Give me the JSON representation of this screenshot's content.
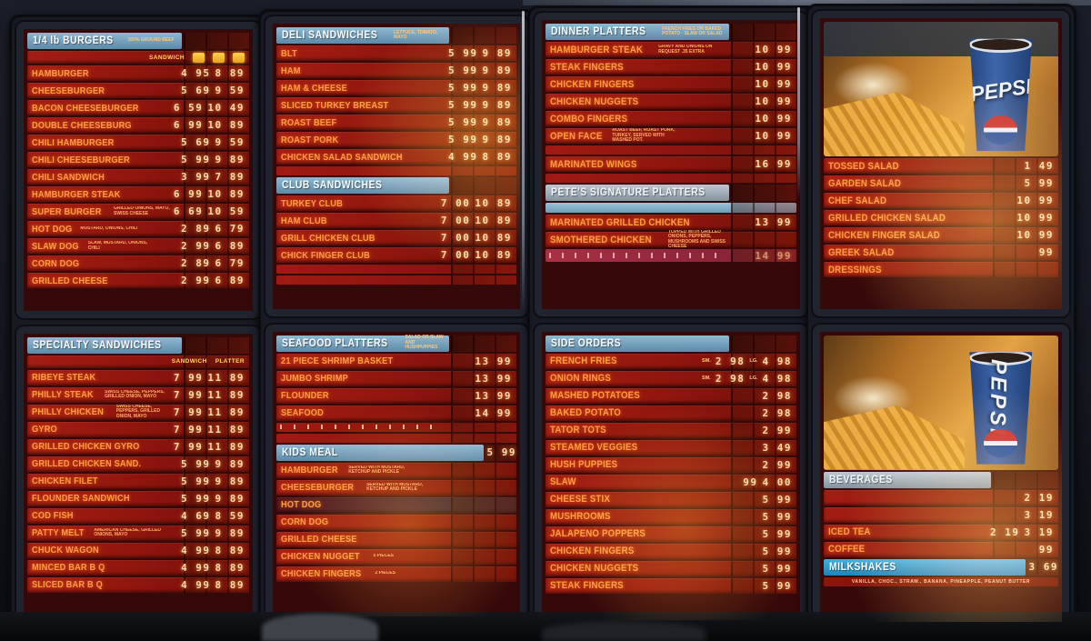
{
  "brand": "PEPSI",
  "colors": {
    "row_red": "#a41d13",
    "letter_orange": "#ff9e45",
    "price_cream": "#ffdcae",
    "header_blue": "#5c8aa8",
    "header_cyan": "#1f84b4",
    "tab_yellow": "#ffd34d",
    "frame_dark": "#171a23"
  },
  "board": {
    "panels": [
      {
        "name": "burgers-and-specialty",
        "windows": [
          [
            {
              "t": "h",
              "v": "blue",
              "title": "1/4 lb BURGERS",
              "sub": "100% GROUND BEEF"
            },
            {
              "t": "c",
              "labels": [
                "SANDWICH"
              ],
              "tabs": 3
            },
            {
              "t": "i",
              "name": "HAMBURGER",
              "p1": "4 95",
              "p2": "8 89"
            },
            {
              "t": "i",
              "name": "CHEESEBURGER",
              "p1": "5 69",
              "p2": "9 59"
            },
            {
              "t": "i",
              "name": "BACON CHEESEBURGER",
              "p1": "6 59",
              "p2": "10 49"
            },
            {
              "t": "i",
              "name": "DOUBLE CHEESEBURG",
              "p1": "6 99",
              "p2": "10 89"
            },
            {
              "t": "i",
              "name": "CHILI HAMBURGER",
              "p1": "5 69",
              "p2": "9 59"
            },
            {
              "t": "i",
              "name": "CHILI CHEESEBURGER",
              "p1": "5 99",
              "p2": "9 89"
            },
            {
              "t": "i",
              "name": "CHILI SANDWICH",
              "p1": "3 99",
              "p2": "7 89"
            },
            {
              "t": "i",
              "name": "HAMBURGER STEAK",
              "p1": "6 99",
              "p2": "10 89"
            },
            {
              "t": "i",
              "name": "SUPER BURGER",
              "note": "GRILLED ONIONS, MAYO, SWISS CHEESE",
              "p1": "6 69",
              "p2": "10 59"
            },
            {
              "t": "i",
              "name": "HOT DOG",
              "note": "MUSTARD, ONIONS, CHILI",
              "p1": "2 89",
              "p2": "6 79"
            },
            {
              "t": "i",
              "name": "SLAW DOG",
              "note": "SLAW, MUSTARD, ONIONS, CHILI",
              "p1": "2 99",
              "p2": "6 89"
            },
            {
              "t": "i",
              "name": "CORN DOG",
              "p1": "2 89",
              "p2": "6 79"
            },
            {
              "t": "i",
              "name": "GRILLED CHEESE",
              "p1": "2 99",
              "p2": "6 89"
            }
          ],
          [
            {
              "t": "h",
              "v": "blue",
              "title": "SPECIALTY SANDWICHES"
            },
            {
              "t": "c",
              "labels": [
                "SANDWICH",
                "PLATTER"
              ]
            },
            {
              "t": "i",
              "name": "RIBEYE STEAK",
              "p1": "7 99",
              "p2": "11 89"
            },
            {
              "t": "i",
              "name": "PHILLY STEAK",
              "note": "SWISS CHEESE, PEPPERS, GRILLED ONION, MAYO",
              "p1": "7 99",
              "p2": "11 89"
            },
            {
              "t": "i",
              "name": "PHILLY CHICKEN",
              "note": "SWISS CHEESE, PEPPERS, GRILLED ONION, MAYO",
              "p1": "7 99",
              "p2": "11 89"
            },
            {
              "t": "i",
              "name": "GYRO",
              "p1": "7 99",
              "p2": "11 89"
            },
            {
              "t": "i",
              "name": "GRILLED CHICKEN GYRO",
              "p1": "7 99",
              "p2": "11 89"
            },
            {
              "t": "i",
              "name": "GRILLED CHICKEN SAND.",
              "p1": "5 99",
              "p2": "9 89"
            },
            {
              "t": "i",
              "name": "CHICKEN FILET",
              "p1": "5 99",
              "p2": "9 89"
            },
            {
              "t": "i",
              "name": "FLOUNDER SANDWICH",
              "p1": "5 99",
              "p2": "9 89"
            },
            {
              "t": "i",
              "name": "COD FISH",
              "p1": "4 69",
              "p2": "8 59"
            },
            {
              "t": "i",
              "name": "PATTY MELT",
              "note": "AMERICAN CHEESE, GRILLED ONIONS, MAYO",
              "p1": "5 99",
              "p2": "9 89"
            },
            {
              "t": "i",
              "name": "CHUCK WAGON",
              "p1": "4 99",
              "p2": "8 89"
            },
            {
              "t": "i",
              "name": "MINCED BAR B Q",
              "p1": "4 99",
              "p2": "8 89"
            },
            {
              "t": "i",
              "name": "SLICED BAR B Q",
              "p1": "4 99",
              "p2": "8 89"
            }
          ]
        ]
      },
      {
        "name": "deli-club-seafood-kids",
        "windows": [
          [
            {
              "t": "h",
              "v": "blue",
              "title": "DELI SANDWICHES",
              "sub": "LETTUCE, TOMATO, MAYO"
            },
            {
              "t": "i",
              "name": "BLT",
              "p1": "5 99",
              "p2": "9 89"
            },
            {
              "t": "i",
              "name": "HAM",
              "p1": "5 99",
              "p2": "9 89"
            },
            {
              "t": "i",
              "name": "HAM & CHEESE",
              "p1": "5 99",
              "p2": "9 89"
            },
            {
              "t": "i",
              "name": "SLICED TURKEY BREAST",
              "p1": "5 99",
              "p2": "9 89"
            },
            {
              "t": "i",
              "name": "ROAST BEEF",
              "p1": "5 99",
              "p2": "9 89"
            },
            {
              "t": "i",
              "name": "ROAST PORK",
              "p1": "5 99",
              "p2": "9 89"
            },
            {
              "t": "i",
              "name": "CHICKEN SALAD SANDWICH",
              "p1": "4 99",
              "p2": "8 89"
            },
            {
              "t": "b",
              "v": "red"
            },
            {
              "t": "h",
              "v": "blue",
              "title": "CLUB SANDWICHES"
            },
            {
              "t": "i",
              "name": "TURKEY CLUB",
              "p1": "7 00",
              "p2": "10 89"
            },
            {
              "t": "i",
              "name": "HAM CLUB",
              "p1": "7 00",
              "p2": "10 89"
            },
            {
              "t": "i",
              "name": "GRILL CHICKEN CLUB",
              "p1": "7 00",
              "p2": "10 89"
            },
            {
              "t": "i",
              "name": "CHICK FINGER CLUB",
              "p1": "7 00",
              "p2": "10 89"
            },
            {
              "t": "b",
              "v": "red"
            },
            {
              "t": "b",
              "v": "red"
            }
          ],
          [
            {
              "t": "h",
              "v": "blue",
              "title": "SEAFOOD PLATTERS",
              "sub": "SALAD or SLAW and HUSHPUPPIES"
            },
            {
              "t": "i",
              "name": "21 PIECE SHRIMP BASKET",
              "p2": "13 99"
            },
            {
              "t": "i",
              "name": "JUMBO SHRIMP",
              "p2": "13 99"
            },
            {
              "t": "i",
              "name": "FLOUNDER",
              "p2": "13 99"
            },
            {
              "t": "i",
              "name": "SEAFOOD",
              "p2": "14 99"
            },
            {
              "t": "b",
              "v": "ticks"
            },
            {
              "t": "b",
              "v": "red"
            },
            {
              "t": "h",
              "v": "blue",
              "title": "KIDS MEAL",
              "price": "5 99"
            },
            {
              "t": "i",
              "name": "HAMBURGER",
              "note": "SERVED with MUSTARD, KETCHUP and PICKLE"
            },
            {
              "t": "i",
              "name": "CHEESEBURGER",
              "note": "SERVED with MUSTARD, KETCHUP and PICKLE"
            },
            {
              "t": "i",
              "name": "HOT DOG",
              "d": true
            },
            {
              "t": "i",
              "name": "CORN DOG"
            },
            {
              "t": "i",
              "name": "GRILLED CHEESE"
            },
            {
              "t": "i",
              "name": "CHICKEN NUGGET",
              "note": "5 PIECES"
            },
            {
              "t": "i",
              "name": "CHICKEN FINGERS",
              "note": "2 PIECES"
            }
          ]
        ]
      },
      {
        "name": "dinners-signature-sides",
        "windows": [
          [
            {
              "t": "h",
              "v": "blue",
              "title": "DINNER PLATTERS",
              "sub": "FRENCH FRIES OR BAKED POTATO · SLAW OR SALAD"
            },
            {
              "t": "i",
              "name": "HAMBURGER STEAK",
              "note": "GRAVY and ONIONS ON REQUEST .35 EXTRA",
              "p2": "10 99"
            },
            {
              "t": "i",
              "name": "STEAK FINGERS",
              "p2": "10 99"
            },
            {
              "t": "i",
              "name": "CHICKEN FINGERS",
              "p2": "10 99"
            },
            {
              "t": "i",
              "name": "CHICKEN NUGGETS",
              "p2": "10 99"
            },
            {
              "t": "i",
              "name": "COMBO FINGERS",
              "p2": "10 99"
            },
            {
              "t": "i",
              "name": "OPEN FACE",
              "note": "ROAST BEEF, ROAST PORK, TURKEY, SERVED with MASHED POT.",
              "p2": "10 99"
            },
            {
              "t": "b",
              "v": "red"
            },
            {
              "t": "i",
              "name": "MARINATED WINGS",
              "p2": "16 99"
            },
            {
              "t": "b",
              "v": "red"
            },
            {
              "t": "h",
              "v": "steel",
              "title": "PETE'S SIGNATURE PLATTERS"
            },
            {
              "t": "b",
              "v": "blue"
            },
            {
              "t": "i",
              "name": "MARINATED GRILLED CHICKEN",
              "p2": "13 99"
            },
            {
              "t": "i",
              "name": "SMOTHERED CHICKEN",
              "note": "TOPPED with GRILLED ONIONS, PEPPERS, MUSHROOMS and SWISS CHEESE"
            },
            {
              "t": "b",
              "v": "pink",
              "price": "14 99"
            }
          ],
          [
            {
              "t": "h",
              "v": "blue",
              "title": "SIDE ORDERS"
            },
            {
              "t": "i",
              "name": "FRENCH FRIES",
              "t1": "SM.",
              "p1": "2 98",
              "t2": "LG.",
              "p2": "4 98"
            },
            {
              "t": "i",
              "name": "ONION RINGS",
              "t1": "SM.",
              "p1": "2 98",
              "t2": "LG.",
              "p2": "4 98"
            },
            {
              "t": "i",
              "name": "MASHED POTATOES",
              "p2": "2 98"
            },
            {
              "t": "i",
              "name": "BAKED POTATO",
              "p2": "2 98"
            },
            {
              "t": "i",
              "name": "TATOR TOTS",
              "p2": "2 99"
            },
            {
              "t": "i",
              "name": "STEAMED VEGGIES",
              "p2": "3 49"
            },
            {
              "t": "i",
              "name": "HUSH PUPPIES",
              "p2": "2 99"
            },
            {
              "t": "i",
              "name": "SLAW",
              "p1": "99",
              "p2": "4 00"
            },
            {
              "t": "i",
              "name": "CHEESE STIX",
              "p2": "5 99"
            },
            {
              "t": "i",
              "name": "MUSHROOMS",
              "p2": "5 99"
            },
            {
              "t": "i",
              "name": "JALAPENO POPPERS",
              "p2": "5 99"
            },
            {
              "t": "i",
              "name": "CHICKEN FINGERS",
              "p2": "5 99"
            },
            {
              "t": "i",
              "name": "CHICKEN NUGGETS",
              "p2": "5 99"
            },
            {
              "t": "i",
              "name": "STEAK FINGERS",
              "p2": "5 99"
            }
          ]
        ]
      },
      {
        "name": "salads-and-beverages",
        "windows": [
          [
            {
              "t": "photo",
              "v": 1
            },
            {
              "t": "i",
              "name": "TOSSED SALAD",
              "p2": "1 49"
            },
            {
              "t": "i",
              "name": "GARDEN SALAD",
              "p2": "5 99"
            },
            {
              "t": "i",
              "name": "CHEF SALAD",
              "p2": "10 99"
            },
            {
              "t": "i",
              "name": "GRILLED CHICKEN SALAD",
              "p2": "10 99"
            },
            {
              "t": "i",
              "name": "CHICKEN FINGER SALAD",
              "p2": "10 99"
            },
            {
              "t": "i",
              "name": "GREEK SALAD",
              "p2": "99"
            },
            {
              "t": "i",
              "name": "DRESSINGS"
            }
          ],
          [
            {
              "t": "photo",
              "v": 2
            },
            {
              "t": "h",
              "v": "steel",
              "title": "BEVERAGES"
            },
            {
              "t": "i",
              "name": "",
              "p2": "2 19"
            },
            {
              "t": "i",
              "name": "",
              "p2": "3 19"
            },
            {
              "t": "i",
              "name": "ICED TEA",
              "p1": "2 19",
              "p2": "3 19"
            },
            {
              "t": "i",
              "name": "COFFEE",
              "p2": "99"
            },
            {
              "t": "h",
              "v": "cyan",
              "title": "MILKSHAKES",
              "price": "3 69"
            },
            {
              "t": "cap",
              "text": "VANILLA, CHOC., STRAW., BANANA, PINEAPPLE, PEANUT BUTTER"
            }
          ]
        ]
      }
    ]
  }
}
